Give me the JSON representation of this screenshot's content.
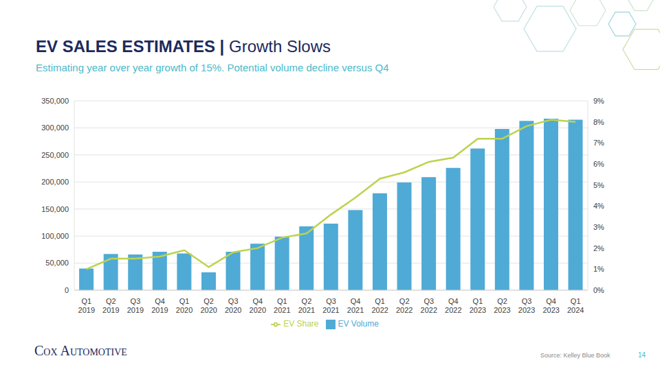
{
  "chart_data": {
    "type": "bar",
    "title": "EV SALES ESTIMATES | Growth Slows",
    "subtitle": "Estimating year over year growth of 15%. Potential volume decline versus Q4",
    "categories": [
      "Q1 2019",
      "Q2 2019",
      "Q3 2019",
      "Q4 2019",
      "Q1 2020",
      "Q2 2020",
      "Q3 2020",
      "Q4 2020",
      "Q1 2021",
      "Q2 2021",
      "Q3 2021",
      "Q4 2021",
      "Q1 2022",
      "Q2 2022",
      "Q3 2022",
      "Q4 2022",
      "Q1 2023",
      "Q2 2023",
      "Q3 2023",
      "Q4 2023",
      "Q1 2024"
    ],
    "series": [
      {
        "name": "EV Volume",
        "type": "bar",
        "color": "#4faad6",
        "values": [
          40000,
          67000,
          66000,
          71000,
          68000,
          33000,
          71000,
          86000,
          99000,
          118000,
          123000,
          148000,
          179000,
          199000,
          209000,
          226000,
          262000,
          298000,
          313000,
          317000,
          315000
        ]
      },
      {
        "name": "EV Share",
        "type": "line",
        "axis": "y2",
        "color": "#bcd34c",
        "values": [
          1.0,
          1.5,
          1.5,
          1.6,
          1.9,
          1.1,
          1.8,
          2.0,
          2.5,
          2.7,
          3.6,
          4.4,
          5.3,
          5.6,
          6.1,
          6.3,
          7.2,
          7.2,
          7.8,
          8.1,
          8.0
        ]
      }
    ],
    "ylim": [
      0,
      350000
    ],
    "yticks": [
      0,
      {
        "value": 50000,
        "label": "50,000"
      },
      {
        "value": 100000,
        "label": "100,000"
      },
      {
        "value": 150000,
        "label": "150,000"
      },
      {
        "value": 200000,
        "label": "200,000"
      },
      {
        "value": 250000,
        "label": "250,000"
      },
      {
        "value": 300000,
        "label": "300,000"
      },
      {
        "value": 350000,
        "label": "350,000"
      }
    ],
    "y2lim": [
      0,
      9
    ],
    "y2ticks": [
      {
        "value": 0,
        "label": "0%"
      },
      {
        "value": 1,
        "label": "1%"
      },
      {
        "value": 2,
        "label": "2%"
      },
      {
        "value": 3,
        "label": "3%"
      },
      {
        "value": 4,
        "label": "4%"
      },
      {
        "value": 5,
        "label": "5%"
      },
      {
        "value": 6,
        "label": "6%"
      },
      {
        "value": 7,
        "label": "7%"
      },
      {
        "value": 8,
        "label": "8%"
      },
      {
        "value": 9,
        "label": "9%"
      }
    ],
    "grid": true,
    "legend": "bottom"
  },
  "footer": {
    "logo": "Cox Automotive",
    "source": "Source: Kelley Blue Book",
    "page": 14
  }
}
